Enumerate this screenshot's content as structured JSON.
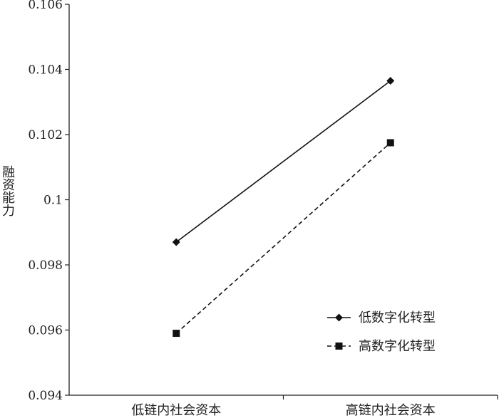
{
  "chart_data": {
    "type": "line",
    "title": "",
    "xlabel": "",
    "ylabel": "融资能力",
    "categories": [
      "低链内社会资本",
      "高链内社会资本"
    ],
    "ylim": [
      0.094,
      0.106
    ],
    "yticks": [
      0.094,
      0.096,
      0.098,
      0.1,
      0.102,
      0.104,
      0.106
    ],
    "ytick_labels": [
      "0.094",
      "0.096",
      "0.098",
      "0.1",
      "0.102",
      "0.104",
      "0.106"
    ],
    "grid": false,
    "legend_position": "bottom-right",
    "series": [
      {
        "name": "低数字化转型",
        "values": [
          0.0987,
          0.10365
        ],
        "line_style": "solid",
        "marker": "diamond"
      },
      {
        "name": "高数字化转型",
        "values": [
          0.0959,
          0.10175
        ],
        "line_style": "dashed",
        "marker": "square"
      }
    ]
  }
}
